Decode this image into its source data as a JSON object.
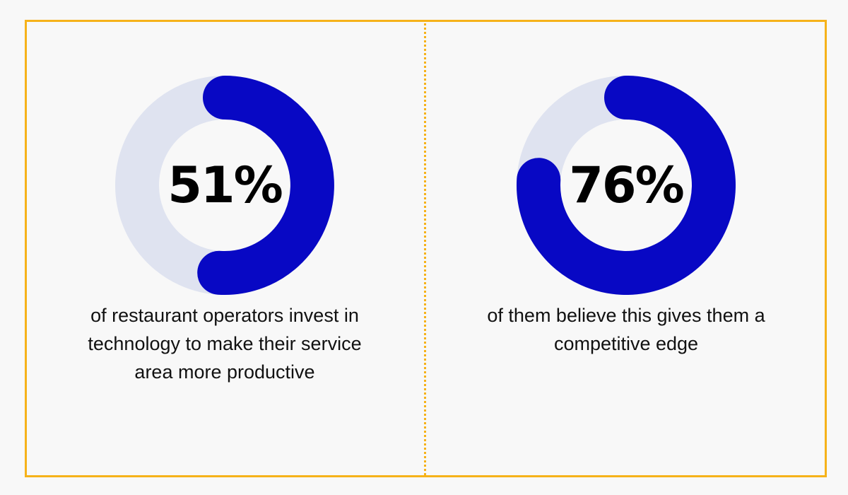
{
  "colors": {
    "frame": "#f6b21a",
    "track": "#dfe3f0",
    "fill": "#0808c4",
    "background": "#f8f8f8"
  },
  "chart_data": [
    {
      "type": "pie",
      "value_percent": 51,
      "label": "51%",
      "caption": "of restaurant operators invest in technology to make their service area more productive"
    },
    {
      "type": "pie",
      "value_percent": 76,
      "label": "76%",
      "caption": "of them believe this gives them a competitive edge"
    }
  ]
}
